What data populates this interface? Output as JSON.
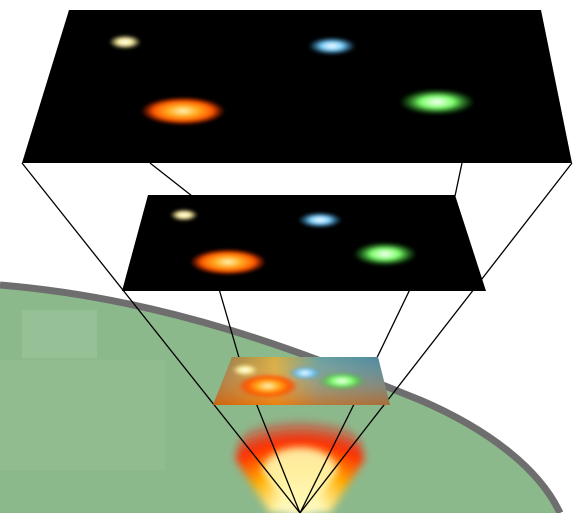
{
  "diagram": {
    "kind": "expanding-universe-illustration",
    "layers": [
      {
        "name": "current-universe",
        "background": "#000000",
        "galaxies": [
          "yellow",
          "blue",
          "orange",
          "green"
        ]
      },
      {
        "name": "earlier-universe",
        "background": "#000000",
        "galaxies": [
          "yellow",
          "blue",
          "orange",
          "green"
        ]
      },
      {
        "name": "early-universe",
        "background": "gradient",
        "galaxies": [
          "yellow",
          "blue",
          "orange",
          "green"
        ]
      }
    ],
    "origin": "big-bang-glow"
  },
  "colors": {
    "ground": "#8cb98c",
    "ground_edge": "#6e6e6e",
    "layer_bg": "#000000",
    "cone_line": "#000000",
    "galaxy_yellow": "#fff2a0",
    "galaxy_blue": "#7fd3ff",
    "galaxy_orange": "#ff9a1a",
    "galaxy_green": "#7dff6a",
    "glow_core": "#fff7b0",
    "glow_outer": "#ff2a00"
  }
}
